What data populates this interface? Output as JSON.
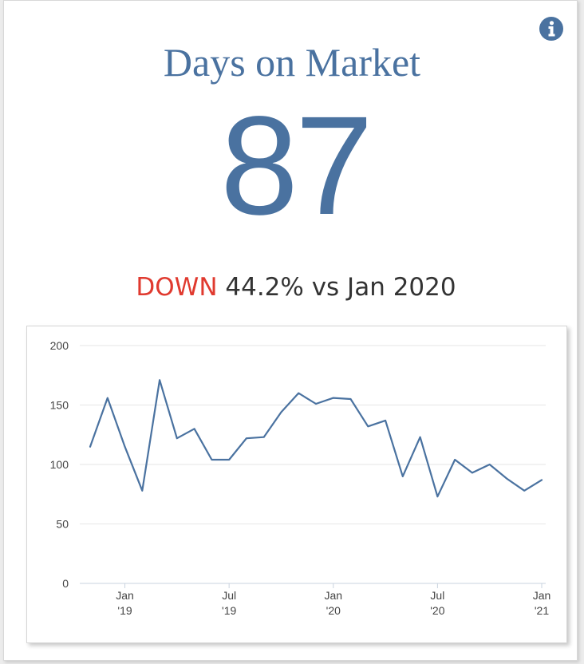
{
  "header": {
    "title": "Days on Market",
    "value": "87",
    "info_icon": "info-circle-icon"
  },
  "comparison": {
    "direction": "DOWN",
    "text": "44.2% vs Jan 2020"
  },
  "colors": {
    "accent": "#4a72a0",
    "down": "#e03a2f",
    "line": "#4a72a0",
    "grid": "#e6e6e6"
  },
  "chart_data": {
    "type": "line",
    "title": "",
    "xlabel": "",
    "ylabel": "",
    "ylim": [
      0,
      200
    ],
    "yticks": [
      0,
      50,
      100,
      150,
      200
    ],
    "grid": true,
    "x_ticks": [
      {
        "label": [
          "Jan",
          "'19"
        ],
        "date": "2019-01"
      },
      {
        "label": [
          "Jul",
          "'19"
        ],
        "date": "2019-07"
      },
      {
        "label": [
          "Jan",
          "'20"
        ],
        "date": "2020-01"
      },
      {
        "label": [
          "Jul",
          "'20"
        ],
        "date": "2020-07"
      },
      {
        "label": [
          "Jan",
          "'21"
        ],
        "date": "2021-01"
      }
    ],
    "x": [
      "2018-11",
      "2018-12",
      "2019-01",
      "2019-02",
      "2019-03",
      "2019-04",
      "2019-05",
      "2019-06",
      "2019-07",
      "2019-08",
      "2019-09",
      "2019-10",
      "2019-11",
      "2019-12",
      "2020-01",
      "2020-02",
      "2020-03",
      "2020-04",
      "2020-05",
      "2020-06",
      "2020-07",
      "2020-08",
      "2020-09",
      "2020-10",
      "2020-11",
      "2020-12",
      "2021-01"
    ],
    "series": [
      {
        "values": [
          115,
          156,
          115,
          78,
          171,
          122,
          130,
          104,
          104,
          122,
          123,
          144,
          160,
          151,
          156,
          155,
          132,
          137,
          90,
          123,
          73,
          104,
          93,
          100,
          88,
          78,
          87
        ]
      }
    ]
  }
}
